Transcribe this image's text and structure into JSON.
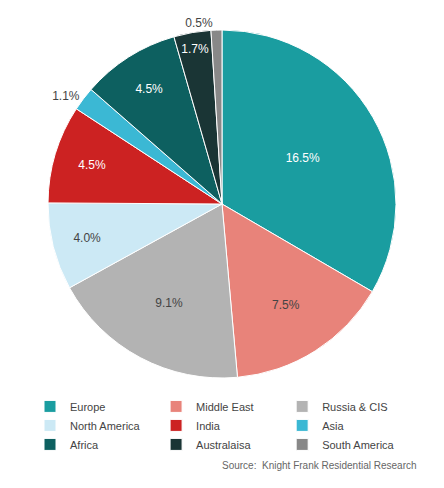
{
  "chart_data": {
    "type": "pie",
    "categories": [
      "Europe",
      "Middle East",
      "Russia & CIS",
      "North America",
      "India",
      "Asia",
      "Africa",
      "Australaisa",
      "South America"
    ],
    "values": [
      16.5,
      7.5,
      9.1,
      4.0,
      4.5,
      1.1,
      4.5,
      1.7,
      0.5
    ],
    "value_labels": [
      "16.5%",
      "7.5%",
      "9.1%",
      "4.0%",
      "4.5%",
      "1.1%",
      "4.5%",
      "1.7%",
      "0.5%"
    ],
    "colors": [
      "#1a9da0",
      "#e8837a",
      "#b3b3b3",
      "#cce9f5",
      "#cc2222",
      "#3bb8d4",
      "#0d6060",
      "#1a3535",
      "#888888"
    ],
    "annotations": [
      "Source:  Knight Frank Residential Research"
    ],
    "legend": "bottom",
    "data_labels": true
  }
}
